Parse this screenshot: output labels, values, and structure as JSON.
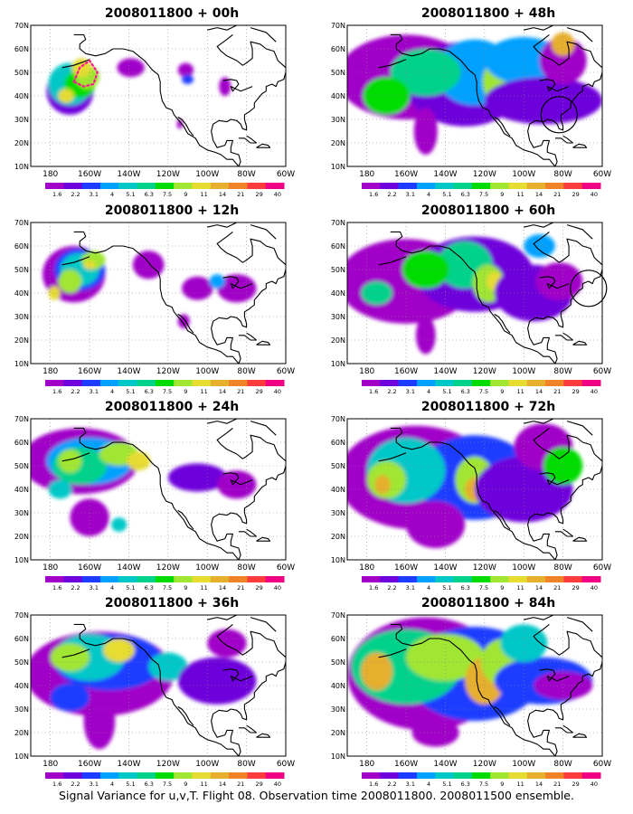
{
  "panels": [
    {
      "title": "2008011800 + 00h",
      "hour": "00h",
      "circle": false,
      "dotted_region": true
    },
    {
      "title": "2008011800 + 48h",
      "hour": "48h",
      "circle": true,
      "circle_label": "",
      "dotted_region": false
    },
    {
      "title": "2008011800 + 12h",
      "hour": "12h",
      "circle": false,
      "dotted_region": false
    },
    {
      "title": "2008011800 + 60h",
      "hour": "60h",
      "circle": true,
      "dotted_region": false
    },
    {
      "title": "2008011800 + 24h",
      "hour": "24h",
      "circle": false,
      "dotted_region": false
    },
    {
      "title": "2008011800 + 72h",
      "hour": "72h",
      "circle": false,
      "dotted_region": false
    },
    {
      "title": "2008011800 + 36h",
      "hour": "36h",
      "circle": false,
      "dotted_region": false
    },
    {
      "title": "2008011800 + 84h",
      "hour": "84h",
      "circle": false,
      "dotted_region": false
    }
  ],
  "axes": {
    "lat_ticks": [
      "70N",
      "60N",
      "50N",
      "40N",
      "30N",
      "20N",
      "10N"
    ],
    "lon_ticks": [
      "180",
      "160W",
      "140W",
      "120W",
      "100W",
      "80W",
      "60W"
    ],
    "lat_range": [
      10,
      70
    ],
    "lon_range": [
      -190,
      -60
    ],
    "grid": "dotted"
  },
  "colorbar": {
    "labels": [
      "1.6",
      "2.2",
      "3.1",
      "4",
      "5.1",
      "6.3",
      "7.5",
      "9",
      "11",
      "14",
      "21",
      "29",
      "40"
    ],
    "colors": [
      "#a000c8",
      "#6e00dc",
      "#1e3cff",
      "#00a0ff",
      "#00c8c8",
      "#00d28c",
      "#00dc00",
      "#a0e632",
      "#e6dc32",
      "#e6af2d",
      "#f08228",
      "#fa3c3c",
      "#f00082"
    ]
  },
  "footer": "Signal Variance for u,v,T. Flight 08. Observation time 2008011800. 2008011500 ensemble."
}
